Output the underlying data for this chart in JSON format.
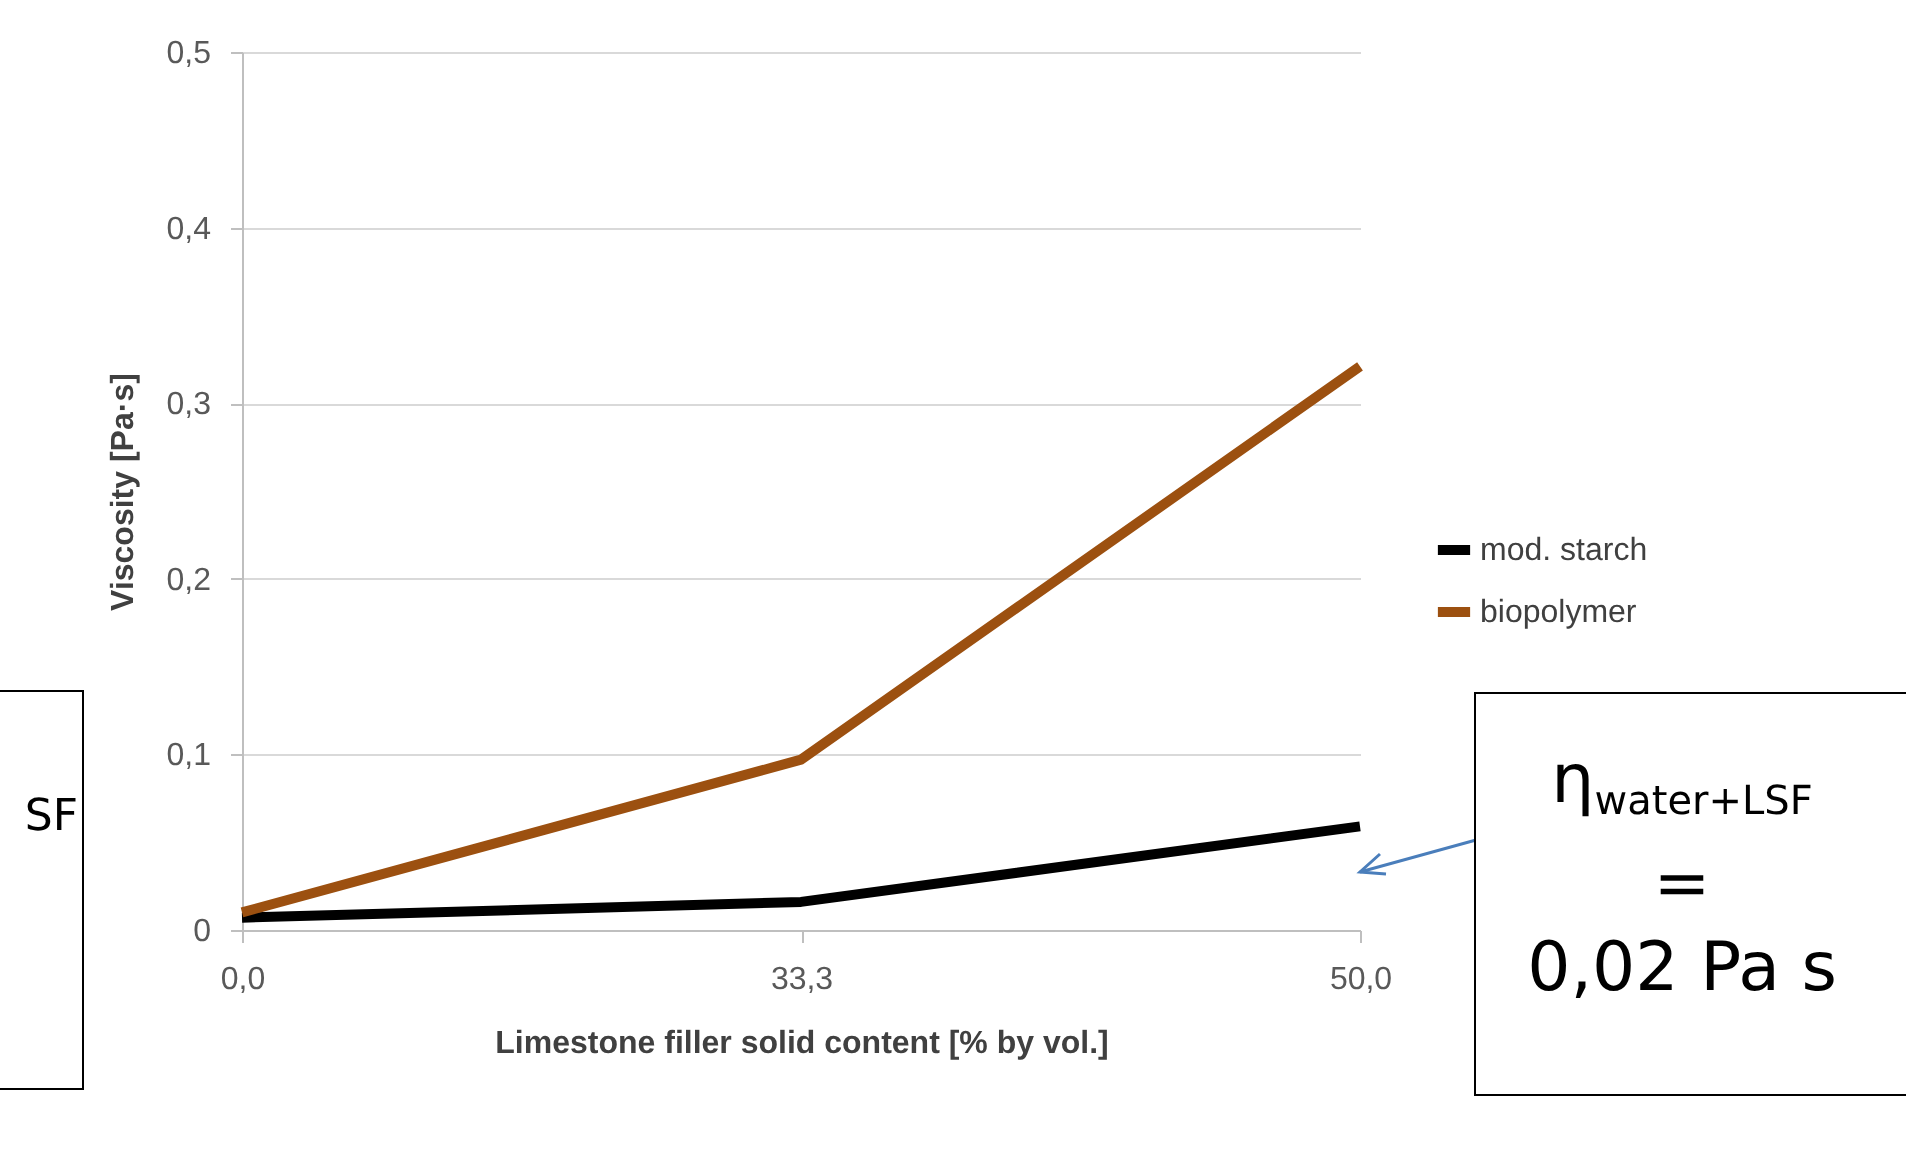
{
  "chart_data": {
    "type": "line",
    "xlabel": "Limestone filler solid content [% by vol.]",
    "ylabel": "Viscosity [Pa·s]",
    "categories": [
      "0,0",
      "33,3",
      "50,0"
    ],
    "series": [
      {
        "name": "mod. starch",
        "color": "#000000",
        "values": [
          0.007,
          0.016,
          0.059
        ]
      },
      {
        "name": "biopolymer",
        "color": "#9c5010",
        "values": [
          0.01,
          0.097,
          0.321
        ]
      }
    ],
    "ylim": [
      0,
      0.5
    ],
    "yticks": [
      {
        "value": 0,
        "label": "0"
      },
      {
        "value": 0.1,
        "label": "0,1"
      },
      {
        "value": 0.2,
        "label": "0,2"
      },
      {
        "value": 0.3,
        "label": "0,3"
      },
      {
        "value": 0.4,
        "label": "0,4"
      },
      {
        "value": 0.5,
        "label": "0,5"
      }
    ],
    "grid": "y",
    "legend": "right",
    "annotations": [
      "SF",
      "η$_{water+LSF}$ = 0,02 Pa s"
    ]
  }
}
